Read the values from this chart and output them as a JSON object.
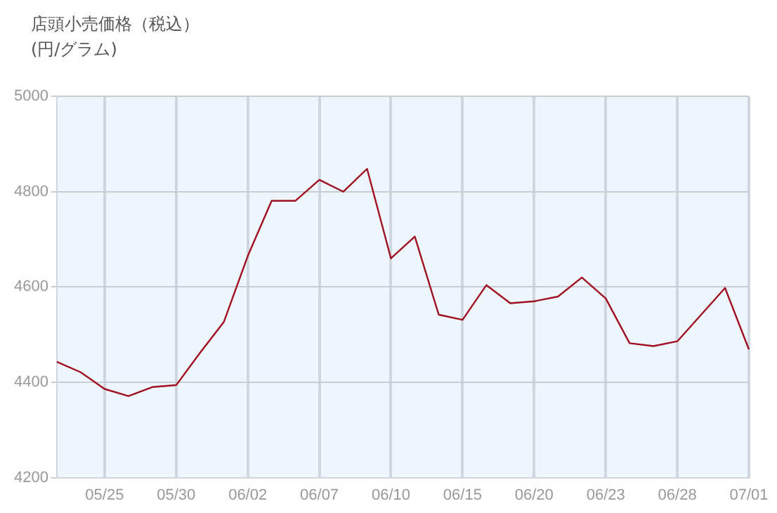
{
  "chart_data": {
    "type": "line",
    "title": "店頭小売価格（税込）",
    "subtitle": "(円/グラム)",
    "categories": [
      null,
      null,
      "05/25",
      null,
      null,
      "05/30",
      null,
      null,
      "06/02",
      null,
      null,
      "06/07",
      null,
      null,
      "06/10",
      null,
      null,
      "06/15",
      null,
      null,
      "06/20",
      null,
      null,
      "06/23",
      null,
      null,
      "06/28",
      null,
      null,
      "07/01"
    ],
    "series": [
      {
        "color": "#a01020",
        "values": [
          4443,
          4421,
          4386,
          4371,
          4390,
          4394,
          4462,
          4527,
          4665,
          4781,
          4781,
          4825,
          4800,
          4848,
          4660,
          4706,
          4542,
          4531,
          4604,
          4566,
          4570,
          4580,
          4620,
          4576,
          4482,
          4476,
          4486,
          4542,
          4598,
          4469
        ]
      }
    ],
    "ylim": [
      4200,
      5000
    ],
    "yticks": [
      4200,
      4400,
      4600,
      4800,
      5000
    ],
    "grid": true,
    "legend": false,
    "marker": "none",
    "line_style": "solid"
  }
}
